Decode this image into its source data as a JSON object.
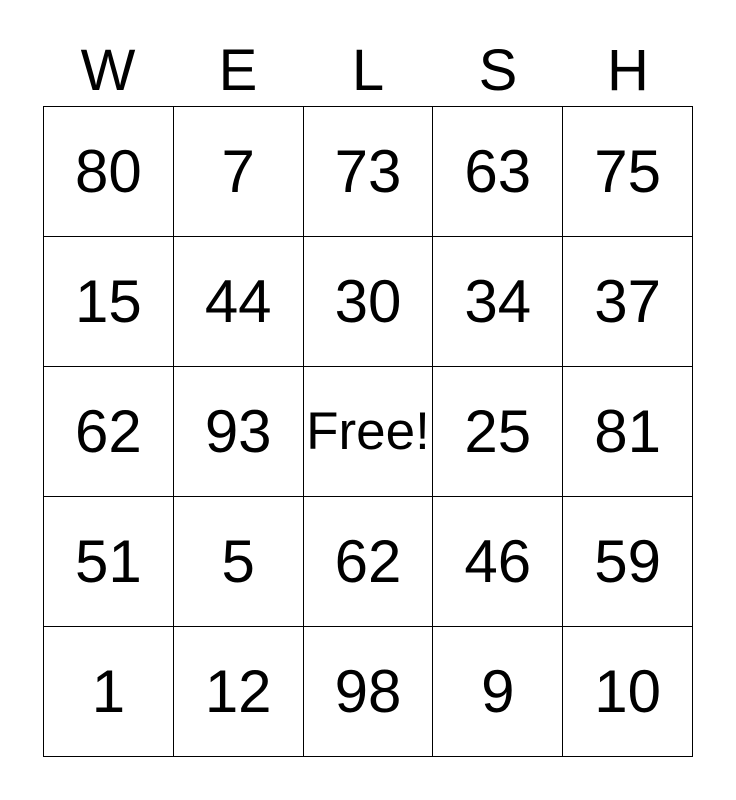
{
  "header": {
    "letters": [
      "W",
      "E",
      "L",
      "S",
      "H"
    ]
  },
  "grid": {
    "rows": [
      [
        "80",
        "7",
        "73",
        "63",
        "75"
      ],
      [
        "15",
        "44",
        "30",
        "34",
        "37"
      ],
      [
        "62",
        "93",
        "Free!",
        "25",
        "81"
      ],
      [
        "51",
        "5",
        "62",
        "46",
        "59"
      ],
      [
        "1",
        "12",
        "98",
        "9",
        "10"
      ]
    ],
    "free_cell": {
      "row": 2,
      "col": 2,
      "label": "Free!"
    }
  },
  "colors": {
    "background": "#ffffff",
    "text": "#000000",
    "border": "#000000"
  }
}
